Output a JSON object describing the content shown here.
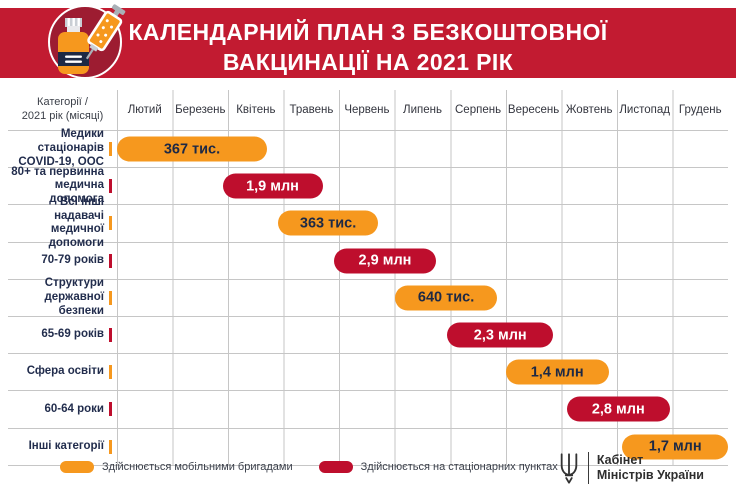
{
  "banner": {
    "title_line1": "КАЛЕНДАРНИЙ ПЛАН З БЕЗКОШТОВНОЇ",
    "title_line2": "ВАКЦИНАЦІЇ НА 2021 РІК"
  },
  "chart_data": {
    "type": "bar",
    "subtype": "gantt-timeline",
    "title": "КАЛЕНДАРНИЙ ПЛАН З БЕЗКОШТОВНОЇ ВАКЦИНАЦІЇ НА 2021 РІК",
    "corner_label_line1": "Категорії /",
    "corner_label_line2": "2021 рік (місяці)",
    "months": [
      "Лютий",
      "Березень",
      "Квітень",
      "Травень",
      "Червень",
      "Липень",
      "Серпень",
      "Вересень",
      "Жовтень",
      "Листопад",
      "Грудень"
    ],
    "month_axis_range": [
      0,
      11
    ],
    "grid": true,
    "rows": [
      {
        "label": "Медики стаціонарів\nCOVID-19, ООС",
        "value_label": "367 тис.",
        "value_people": 367000,
        "color": "orange",
        "start_month": 0.0,
        "end_month": 2.7
      },
      {
        "label": "80+ та первинна\nмедична допомога",
        "value_label": "1,9 млн",
        "value_people": 1900000,
        "color": "red",
        "start_month": 1.9,
        "end_month": 3.7
      },
      {
        "label": "Всі інші надавачі\nмедичної допомоги",
        "value_label": "363 тис.",
        "value_people": 363000,
        "color": "orange",
        "start_month": 2.9,
        "end_month": 4.7
      },
      {
        "label": "70-79 років",
        "value_label": "2,9 млн",
        "value_people": 2900000,
        "color": "red",
        "start_month": 3.9,
        "end_month": 5.75
      },
      {
        "label": "Структури\nдержавної безпеки",
        "value_label": "640 тис.",
        "value_people": 640000,
        "color": "orange",
        "start_month": 5.0,
        "end_month": 6.85
      },
      {
        "label": "65-69 років",
        "value_label": "2,3 млн",
        "value_people": 2300000,
        "color": "red",
        "start_month": 5.95,
        "end_month": 7.85
      },
      {
        "label": "Сфера освіти",
        "value_label": "1,4 млн",
        "value_people": 1400000,
        "color": "orange",
        "start_month": 7.0,
        "end_month": 8.85
      },
      {
        "label": "60-64 роки",
        "value_label": "2,8 млн",
        "value_people": 2800000,
        "color": "red",
        "start_month": 8.1,
        "end_month": 9.95
      },
      {
        "label": "Інші категорії",
        "value_label": "1,7 млн",
        "value_people": 1700000,
        "color": "orange",
        "start_month": 9.1,
        "end_month": 11.0
      }
    ],
    "legend": [
      {
        "label": "Здійснюється мобільними бригадами",
        "color": "orange"
      },
      {
        "label": "Здійснюється на стаціонарних пунктах",
        "color": "red"
      }
    ],
    "legend_position": "bottom-left"
  },
  "footer": {
    "org_line1": "Кабінет",
    "org_line2": "Міністрів України"
  },
  "colors": {
    "banner_red": "#c21b31",
    "icon_circle_maroon": "#9d1c31",
    "bar_orange": "#f6981e",
    "bar_red": "#be0e2d",
    "navy_text": "#222d4d",
    "grid_line": "#c6c6c6"
  },
  "icons": {
    "badge": "vaccine-vial-and-syringe-icon",
    "trident": "ukraine-trident-icon"
  }
}
